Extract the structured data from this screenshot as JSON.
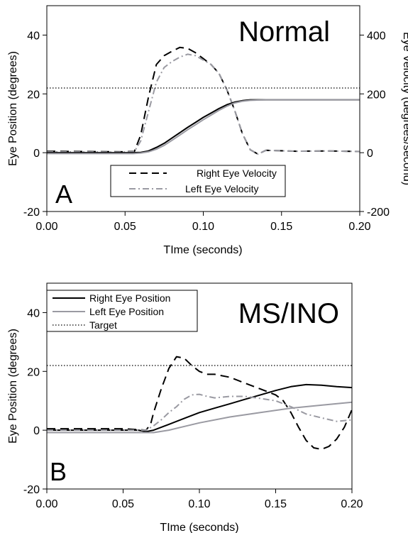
{
  "chart_data": [
    {
      "type": "line",
      "panel_letter": "A",
      "title": "Normal",
      "xlabel": "TIme (seconds)",
      "ylabel": "Eye Position (degrees)",
      "y2label": "Eye Velocity (degrees/second)",
      "xlim": [
        0,
        0.2
      ],
      "ylim": [
        -20,
        50
      ],
      "y2lim": [
        -200,
        500
      ],
      "xticks": [
        "0.00",
        "0.05",
        "0.10",
        "0.15",
        "0.20"
      ],
      "yticks": [
        "-20",
        "0",
        "20",
        "40"
      ],
      "y2ticks": [
        "-200",
        "0",
        "200",
        "400"
      ],
      "grid": false,
      "legend_position": "bottom-center",
      "legend": [
        "Right Eye Velocity",
        "Left Eye Velocity"
      ],
      "series": [
        {
          "name": "Right Eye Velocity",
          "axis": "right",
          "style": "dashed",
          "color": "#000000",
          "x": [
            0,
            0.05,
            0.056,
            0.06,
            0.065,
            0.07,
            0.075,
            0.08,
            0.085,
            0.09,
            0.095,
            0.1,
            0.105,
            0.11,
            0.115,
            0.12,
            0.125,
            0.13,
            0.135,
            0.14,
            0.16,
            0.18,
            0.2
          ],
          "values": [
            5,
            3,
            5,
            60,
            190,
            300,
            330,
            345,
            358,
            355,
            340,
            320,
            300,
            270,
            215,
            145,
            65,
            10,
            -5,
            8,
            5,
            6,
            4
          ]
        },
        {
          "name": "Left Eye Velocity",
          "axis": "right",
          "style": "dashdot",
          "color": "#9a9aa2",
          "x": [
            0,
            0.05,
            0.056,
            0.06,
            0.065,
            0.07,
            0.075,
            0.08,
            0.085,
            0.09,
            0.095,
            0.1,
            0.105,
            0.11,
            0.115,
            0.12,
            0.125,
            0.13,
            0.135,
            0.14,
            0.16,
            0.18,
            0.2
          ],
          "values": [
            3,
            2,
            4,
            40,
            140,
            240,
            290,
            310,
            325,
            335,
            330,
            315,
            300,
            270,
            215,
            145,
            65,
            10,
            -5,
            8,
            5,
            6,
            4
          ]
        },
        {
          "name": "Right Eye Position",
          "axis": "left",
          "style": "solid",
          "color": "#000000",
          "x": [
            0,
            0.055,
            0.06,
            0.065,
            0.07,
            0.075,
            0.08,
            0.085,
            0.09,
            0.095,
            0.1,
            0.105,
            0.11,
            0.115,
            0.12,
            0.125,
            0.13,
            0.14,
            0.2
          ],
          "values": [
            0,
            0,
            0.1,
            0.6,
            1.8,
            3.2,
            5,
            6.8,
            8.6,
            10.3,
            12,
            13.5,
            15,
            16.3,
            17.2,
            17.7,
            18,
            18,
            18
          ]
        },
        {
          "name": "Left Eye Position",
          "axis": "left",
          "style": "solid",
          "color": "#9a9aa2",
          "x": [
            0,
            0.055,
            0.06,
            0.065,
            0.07,
            0.075,
            0.08,
            0.085,
            0.09,
            0.095,
            0.1,
            0.105,
            0.11,
            0.115,
            0.12,
            0.125,
            0.13,
            0.14,
            0.2
          ],
          "values": [
            -0.3,
            -0.3,
            -0.1,
            0.3,
            1.2,
            2.5,
            4.2,
            6,
            7.8,
            9.5,
            11.2,
            12.8,
            14.4,
            15.8,
            16.9,
            17.5,
            17.8,
            18,
            18
          ]
        },
        {
          "name": "Target",
          "axis": "left",
          "style": "dotted",
          "color": "#000000",
          "x": [
            0,
            0.2
          ],
          "values": [
            22,
            22
          ]
        }
      ]
    },
    {
      "type": "line",
      "panel_letter": "B",
      "title": "MS/INO",
      "xlabel": "TIme (seconds)",
      "ylabel": "Eye Position (degrees)",
      "xlim": [
        0,
        0.2
      ],
      "ylim": [
        -20,
        50
      ],
      "xticks": [
        "0.00",
        "0.05",
        "0.10",
        "0.15",
        "0.20"
      ],
      "yticks": [
        "-20",
        "0",
        "20",
        "40"
      ],
      "grid": false,
      "legend_position": "top-left",
      "legend": [
        "Right Eye Position",
        "Left Eye Position",
        "Target"
      ],
      "series": [
        {
          "name": "Right Eye Position",
          "style": "solid",
          "color": "#000000",
          "x": [
            0,
            0.06,
            0.065,
            0.07,
            0.08,
            0.09,
            0.1,
            0.11,
            0.12,
            0.13,
            0.14,
            0.15,
            0.16,
            0.17,
            0.18,
            0.19,
            0.2
          ],
          "values": [
            0,
            0,
            -0.5,
            0,
            2,
            4,
            6,
            7.5,
            9,
            10.5,
            12,
            13.5,
            14.8,
            15.5,
            15.3,
            14.8,
            14.5
          ]
        },
        {
          "name": "Left Eye Position",
          "style": "solid",
          "color": "#9a9aa2",
          "x": [
            0,
            0.07,
            0.08,
            0.1,
            0.12,
            0.14,
            0.16,
            0.18,
            0.2
          ],
          "values": [
            -0.8,
            -0.8,
            0,
            2.5,
            4.5,
            6,
            7.5,
            8.5,
            9.5
          ]
        },
        {
          "name": "Right Eye Velocity",
          "style": "dashed",
          "color": "#000000",
          "x": [
            0,
            0.05,
            0.065,
            0.068,
            0.07,
            0.075,
            0.08,
            0.085,
            0.09,
            0.095,
            0.1,
            0.105,
            0.11,
            0.12,
            0.13,
            0.14,
            0.15,
            0.155,
            0.16,
            0.165,
            0.17,
            0.175,
            0.18,
            0.185,
            0.19,
            0.195,
            0.2
          ],
          "values": [
            0.5,
            0.5,
            0,
            2,
            6,
            14,
            21,
            25,
            24.5,
            22,
            20,
            19,
            19,
            18,
            16,
            14,
            12,
            10,
            6,
            1,
            -3.5,
            -6,
            -6.5,
            -5.5,
            -3,
            1,
            7
          ]
        },
        {
          "name": "Left Eye Velocity",
          "style": "dashdot",
          "color": "#9a9aa2",
          "x": [
            0,
            0.065,
            0.07,
            0.075,
            0.08,
            0.085,
            0.09,
            0.095,
            0.1,
            0.105,
            0.11,
            0.12,
            0.13,
            0.14,
            0.15,
            0.16,
            0.17,
            0.18,
            0.19,
            0.2
          ],
          "values": [
            0,
            0,
            1.5,
            3.5,
            6,
            8,
            10.5,
            12,
            12.2,
            11.5,
            11,
            11.5,
            11.5,
            10.8,
            10,
            8,
            5.5,
            4.2,
            3,
            3.5
          ]
        },
        {
          "name": "Target",
          "style": "dotted",
          "color": "#000000",
          "x": [
            0,
            0.2
          ],
          "values": [
            22,
            22
          ]
        }
      ]
    }
  ]
}
